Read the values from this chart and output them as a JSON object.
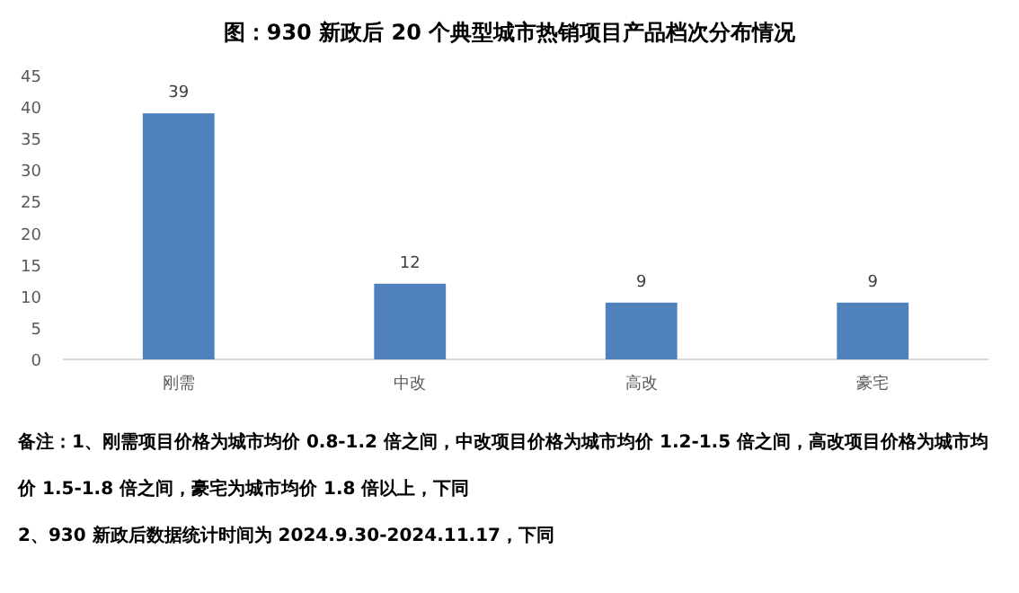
{
  "chart_data": {
    "type": "bar",
    "title": "图：930 新政后 20 个典型城市热销项目产品档次分布情况",
    "categories": [
      "刚需",
      "中改",
      "高改",
      "豪宅"
    ],
    "values": [
      39,
      12,
      9,
      9
    ],
    "color": "#4f81bd",
    "ylim": [
      0,
      45
    ],
    "yticks": [
      0,
      5,
      10,
      15,
      20,
      25,
      30,
      35,
      40,
      45
    ],
    "grid": false,
    "data_labels": true,
    "annotations": [
      "备注：1、刚需项目价格为城市均价 0.8-1.2 倍之间，中改项目价格为城市均价 1.2-1.5 倍之间，高改项目价格为城市均价 1.5-1.8 倍之间，豪宅为城市均价 1.8 倍以上，下同",
      "2、930 新政后数据统计时间为 2024.9.30-2024.11.17，下同"
    ]
  }
}
